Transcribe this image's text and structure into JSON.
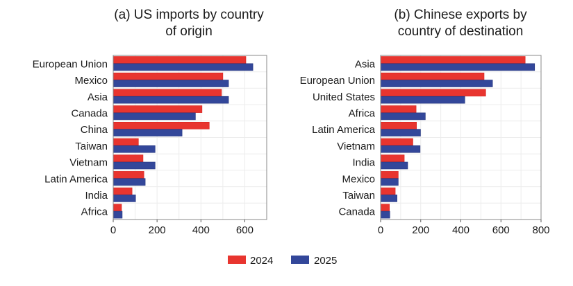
{
  "colors": {
    "2024": "#e8352f",
    "2025": "#33479a"
  },
  "legend": [
    {
      "label": "2024",
      "color": "#e8352f"
    },
    {
      "label": "2025",
      "color": "#33479a"
    }
  ],
  "chart_data": [
    {
      "type": "bar",
      "orientation": "horizontal",
      "title_lines": [
        "(a) US imports by country",
        "of origin"
      ],
      "categories": [
        "European Union",
        "Mexico",
        "Asia",
        "Canada",
        "China",
        "Taiwan",
        "Vietnam",
        "Latin America",
        "India",
        "Africa"
      ],
      "series": [
        {
          "name": "2024",
          "values": [
            605,
            500,
            494,
            405,
            438,
            115,
            136,
            140,
            86,
            38
          ]
        },
        {
          "name": "2025",
          "values": [
            637,
            526,
            526,
            375,
            314,
            191,
            191,
            146,
            102,
            41
          ]
        }
      ],
      "xlim": [
        0,
        700
      ],
      "xticks": [
        0,
        200,
        400,
        600
      ],
      "grid": true
    },
    {
      "type": "bar",
      "orientation": "horizontal",
      "title_lines": [
        "(b) Chinese exports by",
        "country of destination"
      ],
      "categories": [
        "Asia",
        "European Union",
        "United States",
        "Africa",
        "Latin America",
        "Vietnam",
        "India",
        "Mexico",
        "Taiwan",
        "Canada"
      ],
      "series": [
        {
          "name": "2024",
          "values": [
            721,
            516,
            524,
            177,
            179,
            161,
            118,
            88,
            73,
            44
          ]
        },
        {
          "name": "2025",
          "values": [
            768,
            558,
            420,
            223,
            199,
            197,
            135,
            88,
            82,
            46
          ]
        }
      ],
      "xlim": [
        0,
        800
      ],
      "xticks": [
        0,
        200,
        400,
        600,
        800
      ],
      "grid": true
    }
  ]
}
